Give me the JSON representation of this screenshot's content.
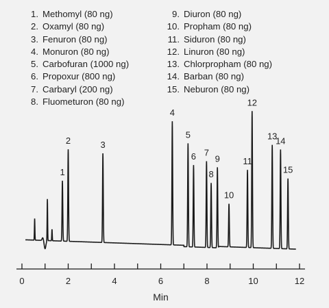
{
  "chart_data": {
    "type": "line",
    "xlabel": "Min",
    "xlim": [
      0,
      12
    ],
    "x_ticks": [
      0,
      2,
      4,
      6,
      8,
      10,
      12
    ],
    "grid": false,
    "legend_placement": "top",
    "peaks": [
      {
        "label": "1",
        "name": "Methomyl (80 ng)",
        "x": 1.75,
        "height": 0.42
      },
      {
        "label": "2",
        "name": "Oxamyl (80 ng)",
        "x": 2.0,
        "height": 0.64
      },
      {
        "label": "3",
        "name": "Fenuron (80 ng)",
        "x": 3.5,
        "height": 0.62
      },
      {
        "label": "4",
        "name": "Monuron (80 ng)",
        "x": 6.5,
        "height": 0.86
      },
      {
        "label": "5",
        "name": "Carbofuran (1000 ng)",
        "x": 7.18,
        "height": 0.72
      },
      {
        "label": "6",
        "name": "Propoxur (800 ng)",
        "x": 7.42,
        "height": 0.57
      },
      {
        "label": "7",
        "name": "Carbaryl (200 ng)",
        "x": 7.98,
        "height": 0.6
      },
      {
        "label": "8",
        "name": "Fluometuron (80 ng)",
        "x": 8.18,
        "height": 0.45
      },
      {
        "label": "9",
        "name": "Diuron (80 ng)",
        "x": 8.45,
        "height": 0.56
      },
      {
        "label": "10",
        "name": "Propham (80 ng)",
        "x": 8.95,
        "height": 0.3
      },
      {
        "label": "11",
        "name": "Siduron (80 ng)",
        "x": 9.75,
        "height": 0.54
      },
      {
        "label": "12",
        "name": "Linuron (80 ng)",
        "x": 9.95,
        "height": 0.95
      },
      {
        "label": "13",
        "name": "Chlorpropham (80 ng)",
        "x": 10.82,
        "height": 0.72
      },
      {
        "label": "14",
        "name": "Barban (80 ng)",
        "x": 11.18,
        "height": 0.69
      },
      {
        "label": "15",
        "name": "Neburon (80 ng)",
        "x": 11.5,
        "height": 0.49
      }
    ],
    "solvent_front": [
      {
        "x": 0.55,
        "height": 0.15
      },
      {
        "x": 1.1,
        "height": 0.29
      },
      {
        "x": 1.3,
        "height": 0.08
      }
    ],
    "colors": {
      "trace": "#1a1a1a",
      "background": "#f2f2f2"
    }
  }
}
